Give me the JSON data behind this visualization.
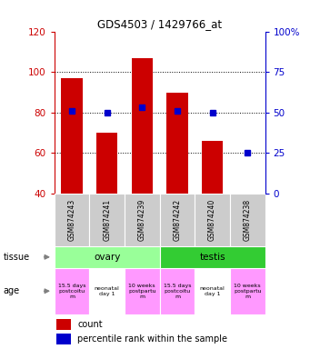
{
  "title": "GDS4503 / 1429766_at",
  "samples": [
    "GSM874243",
    "GSM874241",
    "GSM874239",
    "GSM874242",
    "GSM874240",
    "GSM874238"
  ],
  "counts": [
    97,
    70,
    107,
    90,
    66,
    40
  ],
  "percentiles": [
    51,
    50,
    53,
    51,
    50,
    25
  ],
  "ylim_left": [
    40,
    120
  ],
  "ylim_right": [
    0,
    100
  ],
  "yticks_left": [
    40,
    60,
    80,
    100,
    120
  ],
  "yticks_right": [
    0,
    25,
    50,
    75,
    100
  ],
  "yticklabels_right": [
    "0",
    "25",
    "50",
    "75",
    "100%"
  ],
  "bar_color": "#cc0000",
  "dot_color": "#0000cc",
  "tissue_colors": {
    "ovary": "#99ff99",
    "testis": "#33cc33"
  },
  "age_row": [
    "15.5 days\npostcoitu\nm",
    "neonatal\nday 1",
    "10 weeks\npostpartu\nm",
    "15.5 days\npostcoitu\nm",
    "neonatal\nday 1",
    "10 weeks\npostpartu\nm"
  ],
  "age_colors": [
    "#ff99ff",
    "#ffffff",
    "#ff99ff",
    "#ff99ff",
    "#ffffff",
    "#ff99ff"
  ],
  "sample_bg": "#cccccc",
  "left_axis_color": "#cc0000",
  "right_axis_color": "#0000cc",
  "gridline_ticks": [
    60,
    80,
    100
  ]
}
